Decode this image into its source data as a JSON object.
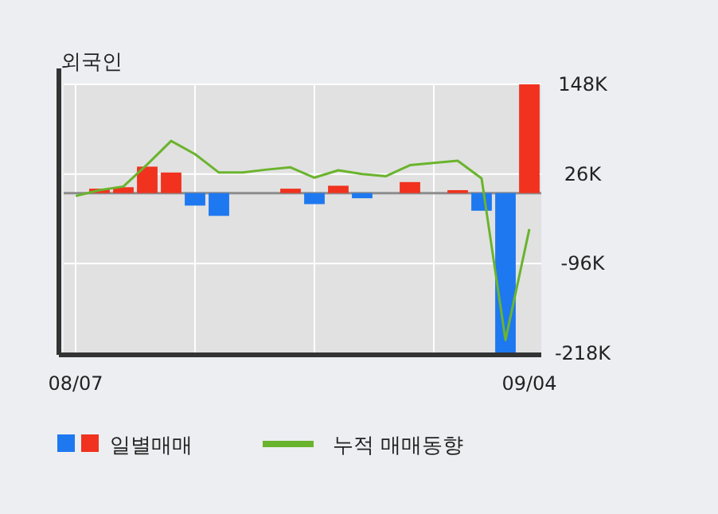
{
  "chart_data": {
    "type": "bar",
    "title": "외국인",
    "categories": [
      "08/07",
      null,
      null,
      null,
      null,
      null,
      null,
      null,
      null,
      null,
      null,
      null,
      null,
      null,
      null,
      null,
      null,
      null,
      null,
      "09/04"
    ],
    "series": [
      {
        "name": "일별매매",
        "values": [
          0,
          6000,
          8000,
          36000,
          28000,
          -17000,
          -31000,
          0,
          0,
          6000,
          -15000,
          10000,
          -7000,
          0,
          15000,
          0,
          4000,
          -24000,
          -218000,
          148000
        ],
        "colors": [
          "#f0321e",
          "#f0321e",
          "#f0321e",
          "#f0321e",
          "#f0321e",
          "#1e78f0",
          "#1e78f0",
          "#f0321e",
          "#f0321e",
          "#f0321e",
          "#1e78f0",
          "#f0321e",
          "#1e78f0",
          "#f0321e",
          "#f0321e",
          "#f0321e",
          "#f0321e",
          "#1e78f0",
          "#1e78f0",
          "#f0321e"
        ]
      },
      {
        "name": "누적 매매동향",
        "type": "line",
        "color": "#6ab42d",
        "values": [
          -4000,
          4000,
          9000,
          39000,
          71000,
          53000,
          28000,
          28000,
          32000,
          35000,
          21000,
          31000,
          26000,
          23000,
          38000,
          41000,
          44000,
          20000,
          -200000,
          -49000
        ]
      }
    ],
    "ylim": [
      -218000,
      148000
    ],
    "yticks": [
      {
        "value": 148000,
        "label": "148K"
      },
      {
        "value": 26000,
        "label": "26K"
      },
      {
        "value": -96000,
        "label": "-96K"
      },
      {
        "value": -218000,
        "label": "-218K"
      }
    ],
    "ref_lines": [
      {
        "axis": "y",
        "value": 0,
        "color": "#8c8c8c"
      }
    ],
    "grid": true,
    "legend": "bottom"
  }
}
